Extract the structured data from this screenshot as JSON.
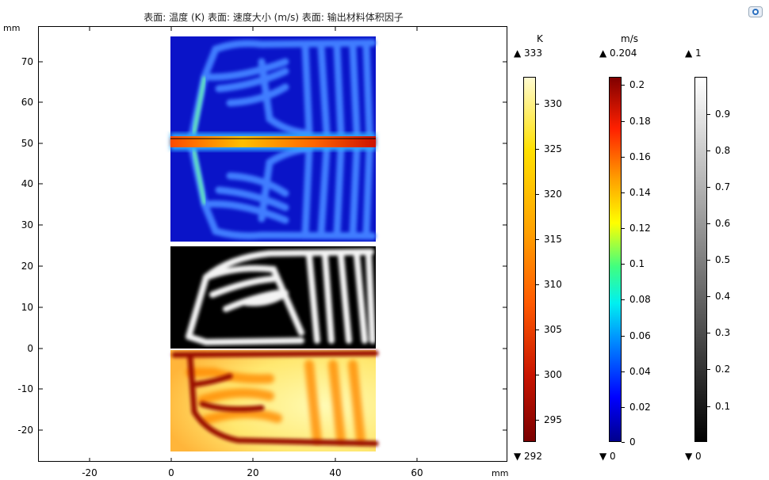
{
  "plot": {
    "title": "表面: 温度 (K)  表面: 速度大小 (m/s)  表面: 输出材料体积因子",
    "x_unit": "mm",
    "y_unit": "mm",
    "x_ticks": [
      "-20",
      "0",
      "20",
      "40",
      "60"
    ],
    "y_ticks": [
      "70",
      "60",
      "50",
      "40",
      "30",
      "20",
      "10",
      "0",
      "-10",
      "-20"
    ]
  },
  "colorbars": [
    {
      "unit": "K",
      "max_label": "▲ 333",
      "min_label": "▼ 292",
      "ticks": [
        "330",
        "325",
        "320",
        "315",
        "310",
        "305",
        "300",
        "295"
      ],
      "colormap": "heat"
    },
    {
      "unit": "m/s",
      "max_label": "▲ 0.204",
      "min_label": "▼ 0",
      "ticks": [
        "0.2",
        "0.18",
        "0.16",
        "0.14",
        "0.12",
        "0.1",
        "0.08",
        "0.06",
        "0.04",
        "0.02",
        "0"
      ],
      "colormap": "rainbow"
    },
    {
      "unit": "",
      "max_label": "▲ 1",
      "min_label": "▼ 0",
      "ticks": [
        "0.9",
        "0.8",
        "0.7",
        "0.6",
        "0.5",
        "0.4",
        "0.3",
        "0.2",
        "0.1"
      ],
      "colormap": "gray"
    }
  ],
  "colors": {
    "flow_bg": "#0a14c8",
    "channel_glow": "#3a7cff",
    "inlet": "#ff3a00",
    "solid": "#000000",
    "heat_hot": "#fff59a",
    "heat_cold": "#8b0000"
  }
}
